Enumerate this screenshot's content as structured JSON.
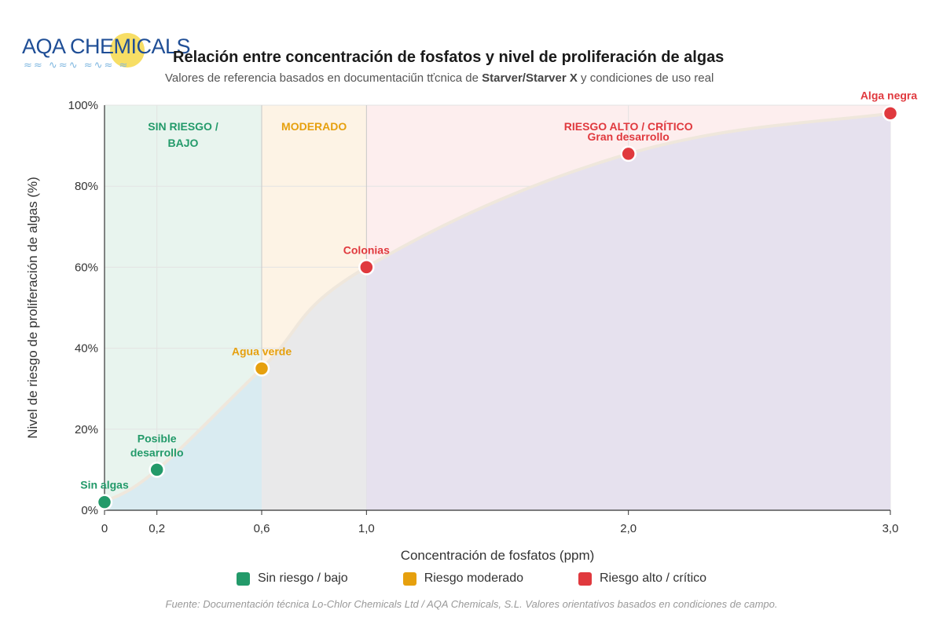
{
  "logo": {
    "text": "AQA CHEMICALS",
    "water": "≈≈ ∿≈∿ ≈∿≈ ≈"
  },
  "header": {
    "title": "Relación entre concentración de fosfatos y nivel de proliferación de algas",
    "subtitle_pre": "Valores de referencia basados en documentaciűn tťcnica de ",
    "subtitle_bold": "Starver/Starver X",
    "subtitle_post": " y condiciones de uso real"
  },
  "chart_data": {
    "type": "line",
    "x_tick_labels": [
      "0",
      "0,2",
      "0,6",
      "1,0",
      "2,0",
      "3,0"
    ],
    "x_ticks": [
      0,
      0.2,
      0.6,
      1.0,
      2.0,
      3.0
    ],
    "y_tick_labels": [
      "0%",
      "20%",
      "40%",
      "60%",
      "80%",
      "100%"
    ],
    "y_ticks": [
      0,
      20,
      40,
      60,
      80,
      100
    ],
    "xlim": [
      0,
      3
    ],
    "ylim": [
      0,
      100
    ],
    "xlabel": "Concentración de fosfatos (ppm)",
    "ylabel": "Nivel de riesgo de proliferación de algas (%)",
    "grid": true,
    "points": [
      {
        "x": 0,
        "y": 2,
        "label": "Sin algas",
        "zone": "low"
      },
      {
        "x": 0.2,
        "y": 10,
        "label": "Posible desarrollo",
        "zone": "low"
      },
      {
        "x": 0.6,
        "y": 35,
        "label": "Agua verde",
        "zone": "moderate"
      },
      {
        "x": 1.0,
        "y": 60,
        "label": "Colonias",
        "zone": "high"
      },
      {
        "x": 2.0,
        "y": 88,
        "label": "Gran desarrollo",
        "zone": "high"
      },
      {
        "x": 3.0,
        "y": 98,
        "label": "Alga negra",
        "zone": "high"
      }
    ],
    "zones": [
      {
        "key": "low",
        "x0": 0,
        "x1": 0.6,
        "label": "SIN RIESGO / BAJO",
        "color": "#239a6a",
        "fill": "#e8f4ee"
      },
      {
        "key": "moderate",
        "x0": 0.6,
        "x1": 1.0,
        "label": "MODERADO",
        "color": "#e6a00e",
        "fill": "#fdf3e5"
      },
      {
        "key": "high",
        "x0": 1.0,
        "x1": 3.0,
        "label": "RIESGO ALTO / CRÍTICO",
        "color": "#e0393e",
        "fill": "#fdeeee"
      }
    ],
    "legend_placement": "bottom"
  },
  "legend": {
    "items": [
      {
        "label": "Sin riesgo / bajo",
        "color": "#239a6a"
      },
      {
        "label": "Riesgo moderado",
        "color": "#e6a00e"
      },
      {
        "label": "Riesgo alto / crítico",
        "color": "#e0393e"
      }
    ]
  },
  "source": "Fuente: Documentación técnica Lo-Chlor Chemicals Ltd / AQA Chemicals, S.L. Valores orientativos basados en condiciones de campo."
}
